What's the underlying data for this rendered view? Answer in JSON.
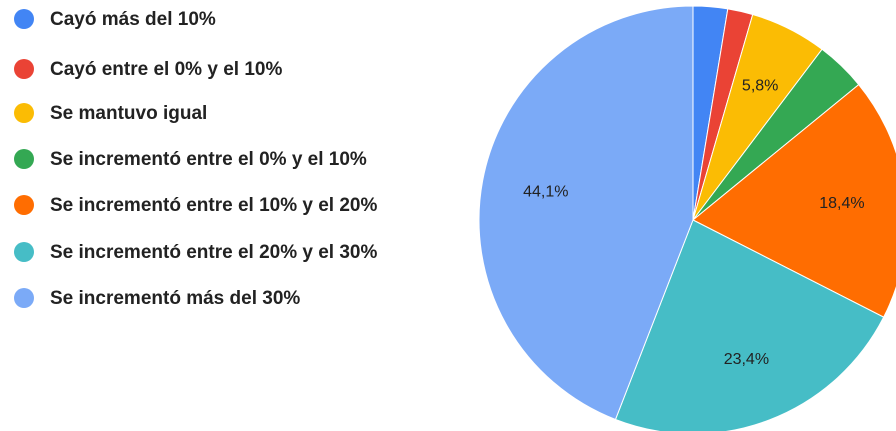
{
  "chart_data": {
    "type": "pie",
    "categories": [
      "Cayó más del 10%",
      "Cayó entre el 0% y el 10%",
      "Se mantuvo igual",
      "Se incrementó entre el 0% y el 10%",
      "Se incrementó entre el 10% y el 20%",
      "Se incrementó entre el 20% y el 30%",
      "Se incrementó más del 30%"
    ],
    "values": [
      2.6,
      1.9,
      5.8,
      3.8,
      18.4,
      23.4,
      44.1
    ],
    "value_labels": [
      null,
      null,
      "5,8%",
      null,
      "18,4%",
      "23,4%",
      "44,1%"
    ],
    "colors": [
      "#4285f4",
      "#ea4335",
      "#fbbc04",
      "#34a853",
      "#ff6d01",
      "#46bdc6",
      "#7baaf7"
    ],
    "legend": "left"
  }
}
